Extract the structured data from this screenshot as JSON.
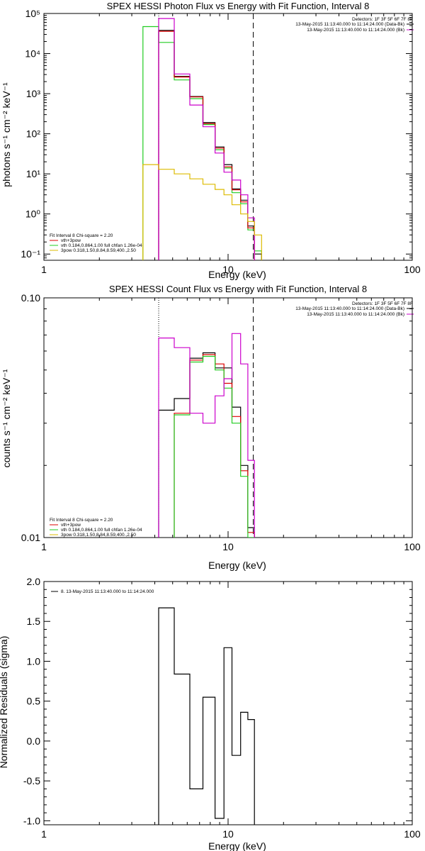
{
  "colors": {
    "black": "#000000",
    "red": "#dd0000",
    "green": "#22cc22",
    "yellow": "#ddbb00",
    "magenta": "#cc00cc"
  },
  "chart_data": [
    {
      "type": "line",
      "title": "SPEX HESSI Photon Flux vs Energy with Fit Function, Interval 8",
      "xlabel": "Energy (keV)",
      "ylabel": "photons s⁻¹ cm⁻² keV⁻¹",
      "xscale": "log",
      "yscale": "log",
      "xlim": [
        1,
        100
      ],
      "ylim": [
        0.07,
        100000
      ],
      "xticks": [
        1,
        10,
        100
      ],
      "xtick_labels": [
        "1",
        "10",
        "100"
      ],
      "yticks": [
        0.1,
        1,
        10,
        100,
        1000,
        10000,
        100000
      ],
      "ytick_labels": [
        "10⁻¹",
        "10⁰",
        "10¹",
        "10²",
        "10³",
        "10⁴",
        "10⁵"
      ],
      "dotted_x": 4.2,
      "dashed_x": 13.7,
      "edges": [
        3.45,
        4.2,
        5.1,
        6.2,
        7.3,
        8.5,
        9.5,
        10.5,
        11.7,
        12.8,
        13.9,
        15.2
      ],
      "series": [
        {
          "color": "#22cc22",
          "values": [
            47000,
            19000,
            2200,
            750,
            170,
            40,
            14,
            3.4,
            1.8,
            0.4,
            0.12
          ]
        },
        {
          "color": "#000000",
          "values": [
            null,
            38000,
            2700,
            850,
            190,
            47,
            17,
            4.2,
            2.2,
            0.5,
            0.1
          ]
        },
        {
          "color": "#dd0000",
          "values": [
            null,
            36000,
            2600,
            830,
            180,
            44,
            15,
            4.0,
            2.0,
            0.45,
            null
          ]
        },
        {
          "color": "#cc00cc",
          "values": [
            null,
            75000,
            3100,
            520,
            150,
            33,
            11,
            7.0,
            3.0,
            0.8,
            null
          ]
        },
        {
          "color": "#ddbb00",
          "values": [
            17,
            13,
            10,
            7.5,
            5.5,
            4.1,
            3.0,
            1.7,
            1.0,
            0.65,
            0.3
          ]
        }
      ],
      "legend": {
        "detectors": "Detectors: 1F 3F 5F 6F 7F 8F",
        "entries": [
          {
            "label": "13-May-2015 11:13:40.000 to 11:14:24.000 (Data-Bk)",
            "color": "#000000"
          },
          {
            "label": "13-May-2015 11:13:40.000 to 11:14:24.000 (Bk)",
            "color": "#cc00cc"
          }
        ],
        "fit_title": "Fit Interval  8   Chi-square = 2.20",
        "fit_entries": [
          {
            "label": "vth+3pow",
            "color": "#dd0000"
          },
          {
            "label": "vth 0.184,0.864,1.00  full chfan 1.26e-04",
            "color": "#22cc22"
          },
          {
            "label": "3pow 0.318,1.50,8.84,8.59,400.,2.50",
            "color": "#ddbb00"
          }
        ]
      }
    },
    {
      "type": "line",
      "title": "SPEX HESSI Count Flux vs Energy with Fit Function, Interval 8",
      "xlabel": "Energy (keV)",
      "ylabel": "counts s⁻¹ cm⁻² keV⁻¹",
      "xscale": "log",
      "yscale": "log",
      "xlim": [
        1,
        100
      ],
      "ylim": [
        0.01,
        0.1
      ],
      "xticks": [
        1,
        10,
        100
      ],
      "xtick_labels": [
        "1",
        "10",
        "100"
      ],
      "yticks": [
        0.01,
        0.1
      ],
      "ytick_labels": [
        "0.01",
        "0.10"
      ],
      "dotted_x": 4.2,
      "dashed_x": 13.7,
      "edges": [
        4.2,
        5.1,
        6.2,
        7.3,
        8.5,
        9.5,
        10.5,
        11.7,
        12.8,
        13.9
      ],
      "series": [
        {
          "color": "#000000",
          "values": [
            0.034,
            0.038,
            0.056,
            0.059,
            0.051,
            0.051,
            0.035,
            0.02,
            0.011
          ]
        },
        {
          "color": "#dd0000",
          "values": [
            null,
            0.033,
            0.055,
            0.058,
            0.053,
            0.044,
            0.032,
            0.019,
            0.0105
          ]
        },
        {
          "color": "#22cc22",
          "values": [
            null,
            0.0325,
            0.054,
            0.057,
            0.05,
            0.042,
            0.03,
            0.018,
            0.01
          ]
        },
        {
          "color": "#cc00cc",
          "values": [
            0.068,
            0.062,
            0.033,
            0.03,
            0.039,
            0.046,
            0.071,
            0.053,
            0.021
          ]
        }
      ],
      "legend": {
        "detectors": "Detectors: 1F 3F 5F 6F 7F 8F",
        "entries": [
          {
            "label": "13-May-2015 11:13:40.000 to 11:14:24.000 (Data-Bk)",
            "color": "#000000"
          },
          {
            "label": "13-May-2015 11:13:40.000 to 11:14:24.000 (Bk)",
            "color": "#cc00cc"
          }
        ],
        "fit_title": "Fit Interval  8   Chi-square = 2.20",
        "fit_entries": [
          {
            "label": "vth+3pow",
            "color": "#dd0000"
          },
          {
            "label": "vth 0.184,0.864,1.00  full chfan 1.26e-04",
            "color": "#22cc22"
          },
          {
            "label": "3pow 0.318,1.50,8.84,8.59,400.,2.50",
            "color": "#ddbb00"
          }
        ]
      }
    },
    {
      "type": "line",
      "title": "",
      "xlabel": "Energy (keV)",
      "ylabel": "Normalized Residuals (sigma)",
      "xscale": "log",
      "yscale": "linear",
      "xlim": [
        1,
        100
      ],
      "ylim": [
        -1.05,
        2.0
      ],
      "xticks": [
        1,
        10,
        100
      ],
      "xtick_labels": [
        "1",
        "10",
        "100"
      ],
      "yticks": [
        -1.0,
        -0.5,
        0.0,
        0.5,
        1.0,
        1.5,
        2.0
      ],
      "ytick_labels": [
        "-1.0",
        "-0.5",
        "0.0",
        "0.5",
        "1.0",
        "1.5",
        "2.0"
      ],
      "edges": [
        4.2,
        5.1,
        6.2,
        7.3,
        8.5,
        9.5,
        10.5,
        11.7,
        12.8,
        13.9
      ],
      "series": [
        {
          "color": "#000000",
          "values": [
            1.67,
            0.84,
            -0.6,
            0.55,
            -0.97,
            1.17,
            -0.18,
            0.36,
            0.27
          ]
        }
      ],
      "legend": {
        "entries": [
          {
            "label": "8. 13-May-2015 11:13:40.000 to 11:14:24.000",
            "color": "#000000"
          }
        ]
      }
    }
  ]
}
